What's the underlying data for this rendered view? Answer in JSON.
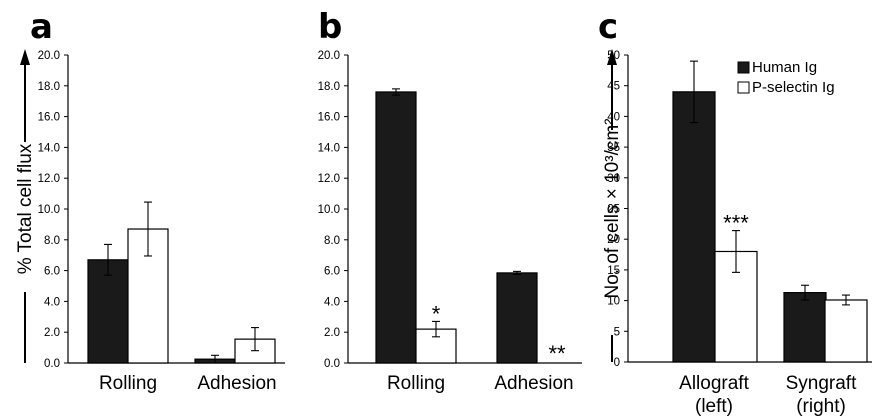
{
  "colors": {
    "human_ig": "#1a1a1a",
    "p_selectin_ig": "#ffffff",
    "axis": "#000000"
  },
  "chart_data": [
    {
      "type": "bar",
      "panel": "a",
      "ylabel": "% Total cell flux",
      "ylim": [
        0,
        20
      ],
      "yticks": [
        "0.0",
        "2.0",
        "4.0",
        "6.0",
        "8.0",
        "10.0",
        "12.0",
        "14.0",
        "16.0",
        "18.0",
        "20.0"
      ],
      "categories": [
        "Rolling",
        "Adhesion"
      ],
      "series": [
        {
          "values": [
            6.7,
            0.25
          ],
          "errors": [
            1.0,
            0.25
          ]
        },
        {
          "values": [
            8.7,
            1.55
          ],
          "errors": [
            1.75,
            0.75
          ]
        }
      ],
      "annotations": []
    },
    {
      "type": "bar",
      "panel": "b",
      "ylabel": "",
      "ylim": [
        0,
        20
      ],
      "yticks": [
        "0.0",
        "2.0",
        "4.0",
        "6.0",
        "8.0",
        "10.0",
        "12.0",
        "14.0",
        "16.0",
        "18.0",
        "20.0"
      ],
      "categories": [
        "Rolling",
        "Adhesion"
      ],
      "series": [
        {
          "values": [
            17.6,
            5.85
          ],
          "errors": [
            0.2,
            0.1
          ]
        },
        {
          "values": [
            2.2,
            0.0
          ],
          "errors": [
            0.5,
            0
          ]
        }
      ],
      "annotations": [
        {
          "text": "*",
          "category": 0,
          "series": 1
        },
        {
          "text": "**",
          "category": 1,
          "series": 1
        }
      ]
    },
    {
      "type": "bar",
      "panel": "c",
      "ylabel": "No. of cells × 10³/cm²",
      "ylim": [
        0,
        50
      ],
      "yticks": [
        "0",
        "5",
        "10",
        "15",
        "20",
        "25",
        "30",
        "35",
        "40",
        "45",
        "50"
      ],
      "categories": [
        [
          "Allograft",
          "(left)"
        ],
        [
          "Syngraft",
          "(right)"
        ]
      ],
      "legend": {
        "position": "top-right"
      },
      "series": [
        {
          "name": "Human Ig",
          "values": [
            44.0,
            11.3
          ],
          "errors": [
            5.0,
            1.2
          ]
        },
        {
          "name": "P-selectin Ig",
          "values": [
            18.0,
            10.1
          ],
          "errors": [
            3.4,
            0.8
          ]
        }
      ],
      "annotations": [
        {
          "text": "***",
          "category": 0,
          "series": 1
        }
      ]
    }
  ]
}
